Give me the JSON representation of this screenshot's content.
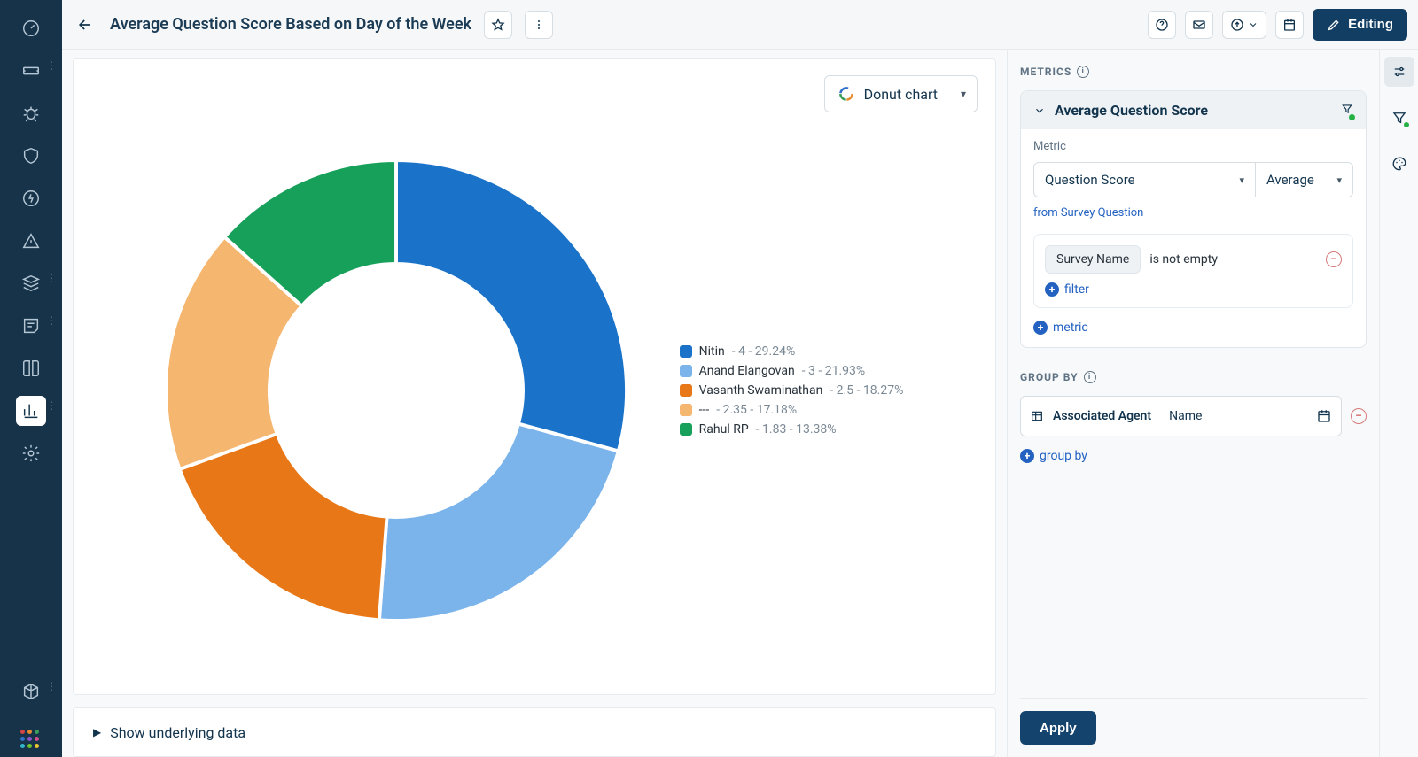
{
  "header": {
    "title": "Average Question Score Based on Day of the Week",
    "editing_label": "Editing"
  },
  "chart_select": {
    "label": "Donut chart"
  },
  "chart": {
    "type": "donut",
    "inner_radius_pct": 55,
    "outer_radius_pct": 100,
    "background_color": "#ffffff",
    "series": [
      {
        "name": "Nitin",
        "value": 4,
        "pct": 29.24,
        "color": "#1a73c9"
      },
      {
        "name": "Anand Elangovan",
        "value": 3,
        "pct": 21.93,
        "color": "#7bb4eb"
      },
      {
        "name": "Vasanth Swaminathan",
        "value": 2.5,
        "pct": 18.27,
        "color": "#e87817"
      },
      {
        "name": "---",
        "value": 2.35,
        "pct": 17.18,
        "color": "#f5b66f"
      },
      {
        "name": "Rahul RP",
        "value": 1.83,
        "pct": 13.38,
        "color": "#17a05a"
      }
    ]
  },
  "underlying": {
    "label": "Show underlying data"
  },
  "panel": {
    "metrics_label": "METRICS",
    "metric_title": "Average Question Score",
    "metric_field_label": "Metric",
    "metric_select": "Question Score",
    "aggregation_select": "Average",
    "from_text": "from Survey Question",
    "filter_chip": "Survey Name",
    "filter_op": "is not empty",
    "add_filter": "filter",
    "add_metric": "metric",
    "groupby_label": "GROUP BY",
    "groupby_entity": "Associated Agent",
    "groupby_field": "Name",
    "add_groupby": "group by",
    "apply_label": "Apply"
  },
  "colors": {
    "nav_bg": "#173349",
    "accent": "#2462c2",
    "editing_btn": "#123e64",
    "apply_btn": "#14436e"
  }
}
